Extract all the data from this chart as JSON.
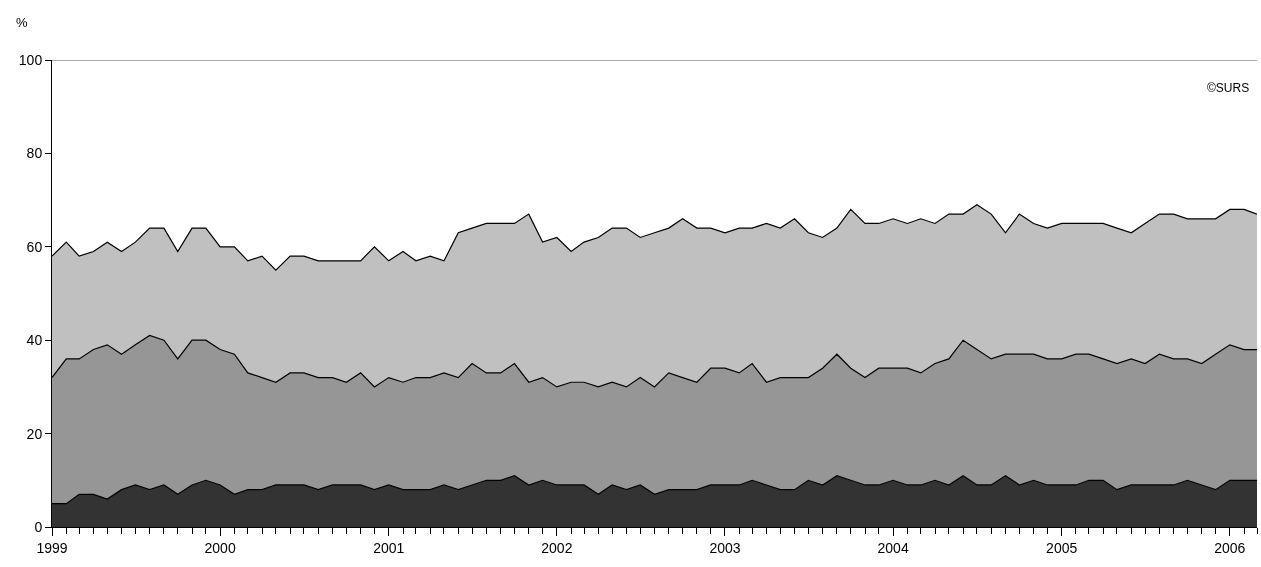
{
  "chart_data": {
    "type": "area",
    "stacked": true,
    "ylabel": "%",
    "annotations": [
      "©SURS"
    ],
    "x": [
      "1999-01",
      "1999-02",
      "1999-03",
      "1999-04",
      "1999-05",
      "1999-06",
      "1999-07",
      "1999-08",
      "1999-09",
      "1999-10",
      "1999-11",
      "1999-12",
      "2000-01",
      "2000-02",
      "2000-03",
      "2000-04",
      "2000-05",
      "2000-06",
      "2000-07",
      "2000-08",
      "2000-09",
      "2000-10",
      "2000-11",
      "2000-12",
      "2001-01",
      "2001-02",
      "2001-03",
      "2001-04",
      "2001-05",
      "2001-06",
      "2001-07",
      "2001-08",
      "2001-09",
      "2001-10",
      "2001-11",
      "2001-12",
      "2002-01",
      "2002-02",
      "2002-03",
      "2002-04",
      "2002-05",
      "2002-06",
      "2002-07",
      "2002-08",
      "2002-09",
      "2002-10",
      "2002-11",
      "2002-12",
      "2003-01",
      "2003-02",
      "2003-03",
      "2003-04",
      "2003-05",
      "2003-06",
      "2003-07",
      "2003-08",
      "2003-09",
      "2003-10",
      "2003-11",
      "2003-12",
      "2004-01",
      "2004-02",
      "2004-03",
      "2004-04",
      "2004-05",
      "2004-06",
      "2004-07",
      "2004-08",
      "2004-09",
      "2004-10",
      "2004-11",
      "2004-12",
      "2005-01",
      "2005-02",
      "2005-03",
      "2005-04",
      "2005-05",
      "2005-06",
      "2005-07",
      "2005-08",
      "2005-09",
      "2005-10",
      "2005-11",
      "2005-12",
      "2006-01",
      "2006-02",
      "2006-03"
    ],
    "series": [
      {
        "color": "#333333",
        "values": [
          5,
          5,
          7,
          7,
          6,
          8,
          9,
          8,
          9,
          7,
          9,
          10,
          9,
          7,
          8,
          8,
          9,
          9,
          9,
          8,
          9,
          9,
          9,
          8,
          9,
          8,
          8,
          8,
          9,
          8,
          9,
          10,
          10,
          11,
          9,
          10,
          9,
          9,
          9,
          7,
          9,
          8,
          9,
          7,
          8,
          8,
          8,
          9,
          9,
          9,
          10,
          9,
          8,
          8,
          10,
          9,
          11,
          10,
          9,
          9,
          10,
          9,
          9,
          10,
          9,
          11,
          9,
          9,
          11,
          9,
          10,
          9,
          9,
          9,
          10,
          10,
          8,
          9,
          9,
          9,
          9,
          10,
          9,
          8,
          10,
          10,
          10
        ]
      },
      {
        "color": "#969696",
        "values": [
          27,
          31,
          29,
          31,
          33,
          29,
          30,
          33,
          31,
          29,
          31,
          30,
          29,
          30,
          25,
          24,
          22,
          24,
          24,
          24,
          23,
          22,
          24,
          22,
          23,
          23,
          24,
          24,
          24,
          24,
          26,
          23,
          23,
          24,
          22,
          22,
          21,
          22,
          22,
          23,
          22,
          22,
          23,
          23,
          25,
          24,
          23,
          25,
          25,
          24,
          25,
          22,
          24,
          24,
          22,
          25,
          26,
          24,
          23,
          25,
          24,
          25,
          24,
          25,
          27,
          29,
          29,
          27,
          26,
          28,
          27,
          27,
          27,
          28,
          27,
          26,
          27,
          27,
          26,
          28,
          27,
          26,
          26,
          29,
          29,
          28,
          28
        ]
      },
      {
        "color": "#c0c0c0",
        "values": [
          26,
          25,
          22,
          21,
          22,
          22,
          22,
          23,
          24,
          23,
          24,
          24,
          22,
          23,
          24,
          26,
          24,
          25,
          25,
          25,
          25,
          26,
          24,
          30,
          25,
          28,
          25,
          26,
          24,
          31,
          29,
          32,
          32,
          30,
          36,
          29,
          32,
          28,
          30,
          32,
          33,
          34,
          30,
          33,
          31,
          34,
          33,
          30,
          29,
          31,
          29,
          34,
          32,
          34,
          31,
          28,
          27,
          34,
          33,
          31,
          32,
          31,
          33,
          30,
          31,
          27,
          31,
          31,
          26,
          30,
          28,
          28,
          29,
          28,
          28,
          29,
          29,
          27,
          30,
          30,
          31,
          30,
          31,
          29,
          29,
          30,
          29
        ]
      }
    ],
    "xlim": [
      "1999-01",
      "2006-03"
    ],
    "xticks": [
      "1999",
      "2000",
      "2001",
      "2002",
      "2003",
      "2004",
      "2005",
      "2006"
    ],
    "ylim": [
      0,
      100
    ],
    "yticks": [
      0,
      20,
      40,
      60,
      80,
      100
    ],
    "grid": false
  }
}
